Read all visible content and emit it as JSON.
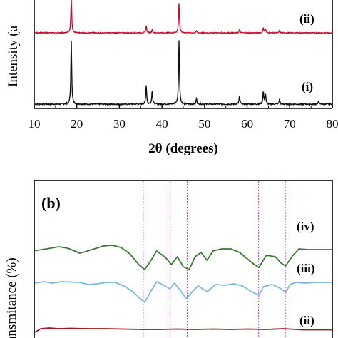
{
  "chart_data": [
    {
      "type": "line",
      "title": "",
      "xlabel": "2θ (degrees)",
      "ylabel": "Intensity (a",
      "xlim": [
        10,
        80
      ],
      "x_ticks": [
        "10",
        "20",
        "30",
        "40",
        "50",
        "60",
        "70",
        "80"
      ],
      "grid": false,
      "series": [
        {
          "name": "(i)",
          "color": "#111111",
          "baseline": 0.0,
          "peaks": [
            {
              "x": 18.7,
              "h": 1.0
            },
            {
              "x": 36.3,
              "h": 0.3
            },
            {
              "x": 37.7,
              "h": 0.22
            },
            {
              "x": 44.0,
              "h": 1.02
            },
            {
              "x": 48.1,
              "h": 0.09
            },
            {
              "x": 58.2,
              "h": 0.13
            },
            {
              "x": 63.8,
              "h": 0.21
            },
            {
              "x": 64.3,
              "h": 0.17
            },
            {
              "x": 67.6,
              "h": 0.08
            },
            {
              "x": 76.8,
              "h": 0.05
            }
          ]
        },
        {
          "name": "(ii)",
          "color": "#c8102e",
          "baseline": 1.0,
          "peaks": [
            {
              "x": 18.7,
              "h": 0.85
            },
            {
              "x": 36.3,
              "h": 0.18
            },
            {
              "x": 37.7,
              "h": 0.08
            },
            {
              "x": 44.0,
              "h": 0.75
            },
            {
              "x": 48.1,
              "h": 0.05
            },
            {
              "x": 58.2,
              "h": 0.08
            },
            {
              "x": 63.8,
              "h": 0.13
            },
            {
              "x": 64.3,
              "h": 0.1
            },
            {
              "x": 67.6,
              "h": 0.05
            }
          ]
        }
      ]
    },
    {
      "type": "line",
      "panel_label": "(b)",
      "title": "",
      "xlabel": "",
      "ylabel": "ansmitance (%)",
      "grid": false,
      "reference_lines": [
        0.365,
        0.456,
        0.513,
        0.754,
        0.844
      ],
      "series": [
        {
          "name": "(iv)",
          "color": "#3a7a34",
          "points": [
            [
              0.0,
              0.155
            ],
            [
              0.04,
              0.13
            ],
            [
              0.08,
              0.1
            ],
            [
              0.11,
              0.12
            ],
            [
              0.14,
              0.17
            ],
            [
              0.15,
              0.19
            ],
            [
              0.17,
              0.17
            ],
            [
              0.2,
              0.13
            ],
            [
              0.23,
              0.09
            ],
            [
              0.26,
              0.08
            ],
            [
              0.29,
              0.11
            ],
            [
              0.32,
              0.2
            ],
            [
              0.35,
              0.35
            ],
            [
              0.37,
              0.42
            ],
            [
              0.39,
              0.3
            ],
            [
              0.41,
              0.16
            ],
            [
              0.44,
              0.25
            ],
            [
              0.46,
              0.35
            ],
            [
              0.48,
              0.24
            ],
            [
              0.5,
              0.38
            ],
            [
              0.52,
              0.42
            ],
            [
              0.54,
              0.24
            ],
            [
              0.56,
              0.18
            ],
            [
              0.58,
              0.29
            ],
            [
              0.6,
              0.16
            ],
            [
              0.63,
              0.13
            ],
            [
              0.66,
              0.13
            ],
            [
              0.69,
              0.18
            ],
            [
              0.71,
              0.25
            ],
            [
              0.74,
              0.35
            ],
            [
              0.755,
              0.39
            ],
            [
              0.78,
              0.22
            ],
            [
              0.81,
              0.24
            ],
            [
              0.83,
              0.33
            ],
            [
              0.845,
              0.37
            ],
            [
              0.87,
              0.22
            ],
            [
              0.89,
              0.13
            ],
            [
              0.92,
              0.14
            ],
            [
              0.96,
              0.14
            ],
            [
              1.0,
              0.14
            ]
          ]
        },
        {
          "name": "(iii)",
          "color": "#7bb8d9",
          "points": [
            [
              0.0,
              0.0
            ],
            [
              0.03,
              -0.02
            ],
            [
              0.06,
              0.0
            ],
            [
              0.09,
              -0.02
            ],
            [
              0.12,
              -0.015
            ],
            [
              0.15,
              -0.01
            ],
            [
              0.18,
              0.02
            ],
            [
              0.21,
              0.01
            ],
            [
              0.24,
              -0.01
            ],
            [
              0.27,
              -0.01
            ],
            [
              0.3,
              0.04
            ],
            [
              0.33,
              0.12
            ],
            [
              0.355,
              0.22
            ],
            [
              0.37,
              0.27
            ],
            [
              0.39,
              0.12
            ],
            [
              0.41,
              -0.02
            ],
            [
              0.43,
              0.02
            ],
            [
              0.455,
              0.08
            ],
            [
              0.47,
              0.0
            ],
            [
              0.49,
              0.1
            ],
            [
              0.51,
              0.22
            ],
            [
              0.53,
              0.12
            ],
            [
              0.55,
              0.04
            ],
            [
              0.58,
              0.12
            ],
            [
              0.61,
              0.02
            ],
            [
              0.64,
              0.03
            ],
            [
              0.67,
              0.01
            ],
            [
              0.7,
              0.04
            ],
            [
              0.73,
              0.12
            ],
            [
              0.755,
              0.17
            ],
            [
              0.77,
              0.05
            ],
            [
              0.8,
              0.02
            ],
            [
              0.83,
              0.08
            ],
            [
              0.845,
              0.13
            ],
            [
              0.86,
              0.02
            ],
            [
              0.88,
              -0.01
            ],
            [
              0.91,
              0.0
            ],
            [
              0.95,
              -0.01
            ],
            [
              1.0,
              -0.01
            ]
          ]
        },
        {
          "name": "(ii)",
          "color": "#a3151f",
          "points": [
            [
              0.0,
              0.0
            ],
            [
              0.02,
              -0.05
            ],
            [
              0.05,
              -0.06
            ],
            [
              0.08,
              -0.05
            ],
            [
              0.12,
              -0.055
            ],
            [
              0.18,
              -0.05
            ],
            [
              0.24,
              -0.05
            ],
            [
              0.3,
              -0.045
            ],
            [
              0.36,
              -0.04
            ],
            [
              0.42,
              -0.04
            ],
            [
              0.48,
              -0.045
            ],
            [
              0.54,
              -0.04
            ],
            [
              0.6,
              -0.045
            ],
            [
              0.66,
              -0.04
            ],
            [
              0.72,
              -0.045
            ],
            [
              0.78,
              -0.04
            ],
            [
              0.84,
              -0.05
            ],
            [
              0.9,
              -0.035
            ],
            [
              0.95,
              -0.035
            ],
            [
              1.0,
              -0.035
            ]
          ]
        }
      ]
    }
  ]
}
